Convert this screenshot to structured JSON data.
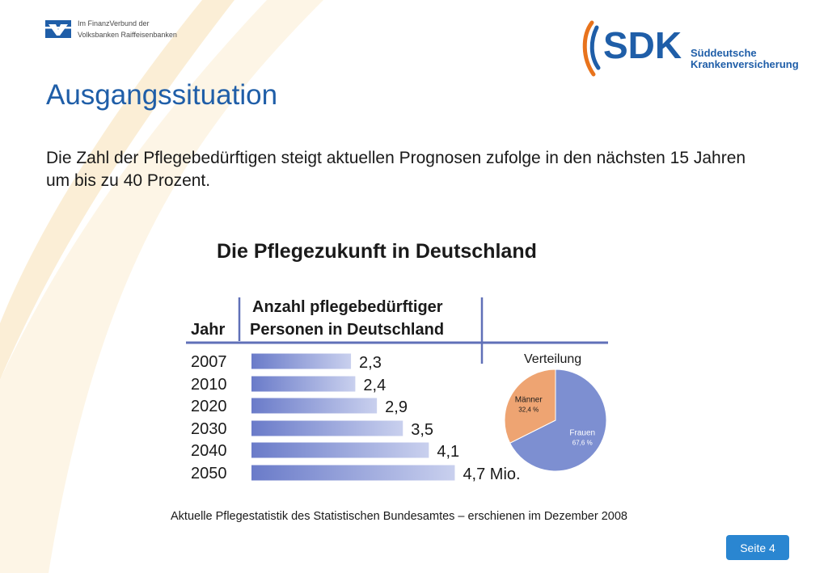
{
  "header": {
    "bank_line1": "Im FinanzVerbund der",
    "bank_line2": "Volksbanken Raiffeisenbanken",
    "sdk_name": "SDK",
    "sdk_line1": "Süddeutsche",
    "sdk_line2": "Krankenversicherung"
  },
  "slide": {
    "title": "Ausgangssituation",
    "intro": "Die Zahl der Pflegebedürftigen steigt aktuellen Prognosen zufolge in den nächsten 15 Jahren um bis zu 40 Prozent.",
    "source": "Aktuelle Pflegestatistik des Statistischen Bundesamtes – erschienen im Dezember 2008",
    "page_label": "Seite 4"
  },
  "colors": {
    "accent_blue": "#1f5ea8",
    "sdk_orange": "#e8731c",
    "page_button": "#2a86d1",
    "bar_blue": "#6a7bc9",
    "pie_blue": "#7d8fd1",
    "pie_orange": "#eea472",
    "swoosh": "#fbeed6"
  },
  "chart_data": [
    {
      "type": "bar",
      "orientation": "horizontal",
      "title": "Die Pflegezukunft in Deutschland",
      "col_header_left": "Jahr",
      "col_header_right_line1": "Anzahl pflegebedürftiger",
      "col_header_right_line2": "Personen in Deutschland",
      "categories": [
        "2007",
        "2010",
        "2020",
        "2030",
        "2040",
        "2050"
      ],
      "values": [
        2.3,
        2.4,
        2.9,
        3.5,
        4.1,
        4.7
      ],
      "value_labels": [
        "2,3",
        "2,4",
        "2,9",
        "3,5",
        "4,1",
        "4,7 Mio."
      ],
      "unit": "Mio."
    },
    {
      "type": "pie",
      "title": "Verteilung",
      "slices": [
        {
          "name": "Frauen",
          "value": 67.6,
          "label": "67,6 %",
          "color": "#7d8fd1"
        },
        {
          "name": "Männer",
          "value": 32.4,
          "label": "32,4 %",
          "color": "#eea472"
        }
      ]
    }
  ]
}
